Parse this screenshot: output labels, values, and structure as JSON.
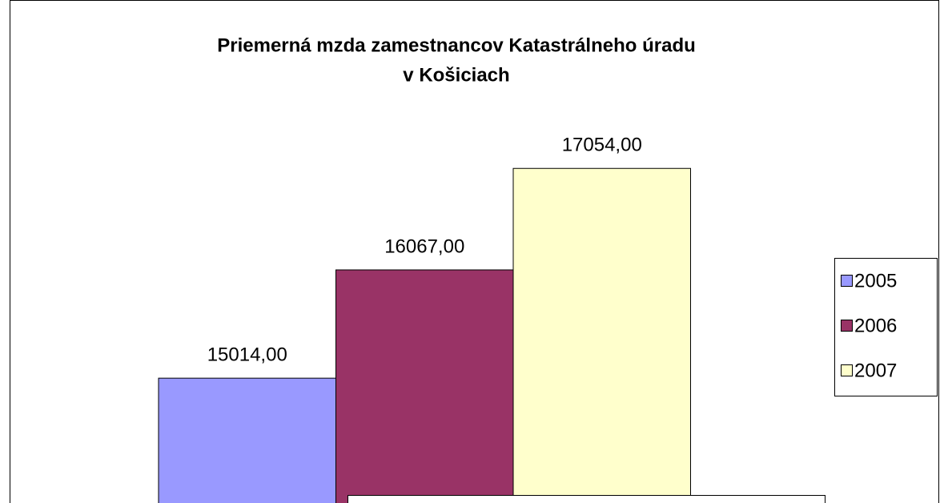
{
  "chart_data": {
    "type": "bar",
    "title": [
      "Priemerná mzda zamestnancov Katastrálneho úradu",
      "v Košiciach"
    ],
    "series": [
      {
        "name": "2005",
        "color": "#9999ff",
        "values": [
          15014
        ],
        "value_labels": [
          "15014,00"
        ]
      },
      {
        "name": "2006",
        "color": "#993366",
        "values": [
          16067
        ],
        "value_labels": [
          "16067,00"
        ]
      },
      {
        "name": "2007",
        "color": "#ffffcc",
        "values": [
          17054
        ],
        "value_labels": [
          "17054,00"
        ]
      }
    ],
    "ylim": [
      13800,
      17500
    ],
    "grid": false,
    "legend": "right"
  }
}
